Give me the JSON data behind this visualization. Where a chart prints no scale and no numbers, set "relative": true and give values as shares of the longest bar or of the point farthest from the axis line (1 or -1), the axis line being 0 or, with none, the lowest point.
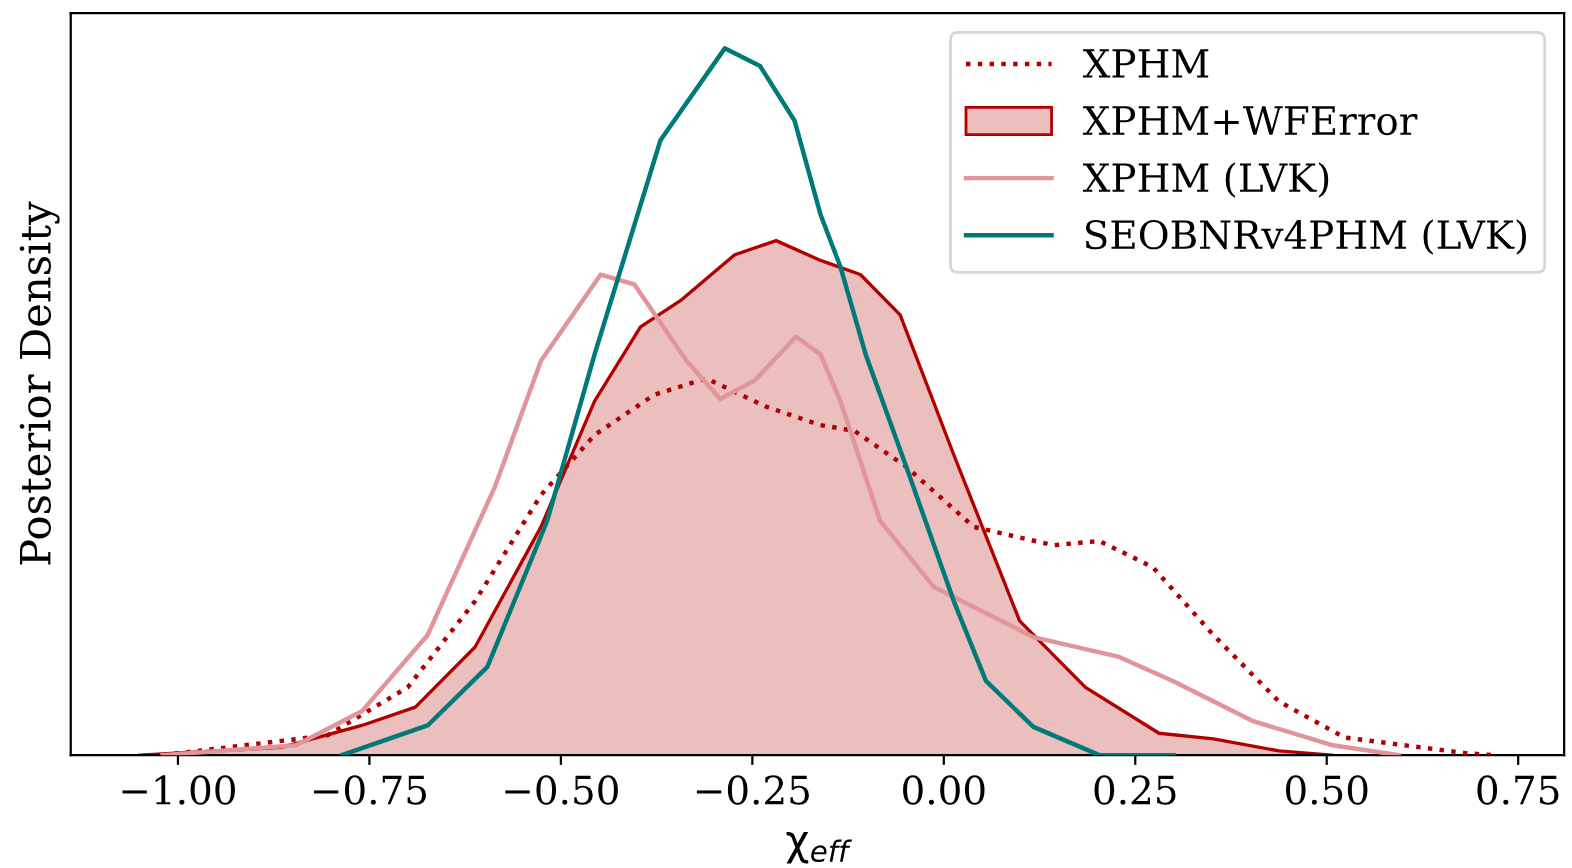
{
  "chart_data": {
    "type": "line",
    "relative": true,
    "xlabel": "χ$_{eff}$",
    "ylabel": "Posterior Density",
    "xlim": [
      -1.14,
      0.81
    ],
    "xticks": [
      {
        "value": -1.0,
        "label": "−1.00"
      },
      {
        "value": -0.75,
        "label": "−0.75"
      },
      {
        "value": -0.5,
        "label": "−0.50"
      },
      {
        "value": -0.25,
        "label": "−0.25"
      },
      {
        "value": 0.0,
        "label": "0.00"
      },
      {
        "value": 0.25,
        "label": "0.25"
      },
      {
        "value": 0.5,
        "label": "0.50"
      },
      {
        "value": 0.75,
        "label": "0.75"
      }
    ],
    "tick_labels": "x",
    "grid": false,
    "legend": "top right",
    "series": [
      {
        "name": "XPHM",
        "line_style": "dotted",
        "color": "#b20000",
        "x": [
          -1.02,
          -0.805,
          -0.7,
          -0.612,
          -0.526,
          -0.456,
          -0.378,
          -0.31,
          -0.232,
          -0.161,
          -0.117,
          -0.049,
          0.039,
          0.143,
          0.203,
          0.273,
          0.352,
          0.4375,
          0.523,
          0.68,
          0.716
        ],
        "values": [
          0,
          0.028,
          0.096,
          0.218,
          0.368,
          0.453,
          0.51,
          0.533,
          0.493,
          0.467,
          0.459,
          0.408,
          0.323,
          0.297,
          0.303,
          0.266,
          0.17,
          0.076,
          0.025,
          0.003,
          0
        ]
      },
      {
        "name": "XPHM+WFError",
        "type": "area",
        "line_style": "solid",
        "color": "#b20000",
        "x": [
          -1.05,
          -0.865,
          -0.76,
          -0.69,
          -0.612,
          -0.526,
          -0.456,
          -0.396,
          -0.344,
          -0.273,
          -0.219,
          -0.161,
          -0.109,
          -0.057,
          0.013,
          0.099,
          0.185,
          0.281,
          0.352,
          0.4375,
          0.508
        ],
        "values": [
          0,
          0.011,
          0.042,
          0.068,
          0.153,
          0.323,
          0.501,
          0.606,
          0.643,
          0.708,
          0.728,
          0.7,
          0.68,
          0.623,
          0.425,
          0.19,
          0.096,
          0.031,
          0.023,
          0.006,
          0
        ]
      },
      {
        "name": "XPHM (LVK)",
        "line_style": "solid",
        "color": "#e0959a",
        "x": [
          -1.02,
          -0.846,
          -0.76,
          -0.674,
          -0.586,
          -0.526,
          -0.448,
          -0.404,
          -0.336,
          -0.292,
          -0.247,
          -0.193,
          -0.161,
          -0.135,
          -0.083,
          -0.013,
          0.117,
          0.229,
          0.299,
          0.404,
          0.508,
          0.594
        ],
        "values": [
          0,
          0.014,
          0.062,
          0.17,
          0.38,
          0.558,
          0.68,
          0.666,
          0.558,
          0.504,
          0.53,
          0.592,
          0.567,
          0.501,
          0.331,
          0.238,
          0.167,
          0.139,
          0.105,
          0.048,
          0.014,
          0
        ]
      },
      {
        "name": "SEOBNRv4PHM (LVK)",
        "line_style": "solid",
        "color": "#007a78",
        "x": [
          -0.786,
          -0.674,
          -0.596,
          -0.518,
          -0.456,
          -0.37,
          -0.286,
          -0.24,
          -0.195,
          -0.161,
          -0.135,
          -0.102,
          -0.049,
          0.013,
          0.055,
          0.117,
          0.203,
          0.3
        ],
        "values": [
          0,
          0.042,
          0.125,
          0.331,
          0.567,
          0.87,
          1.0,
          0.975,
          0.898,
          0.765,
          0.691,
          0.567,
          0.408,
          0.218,
          0.105,
          0.04,
          0,
          0
        ]
      }
    ]
  }
}
